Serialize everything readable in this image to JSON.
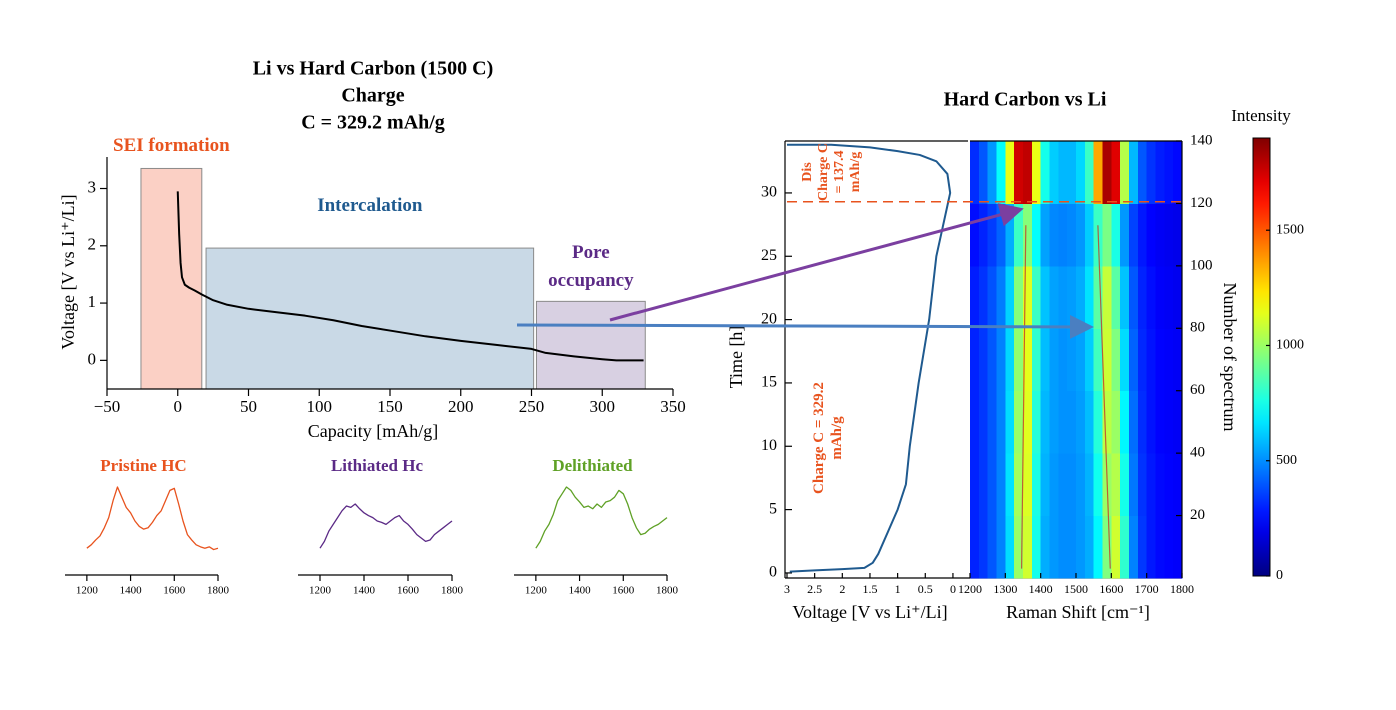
{
  "chart_data": [
    {
      "type": "line",
      "title": [
        "Li vs Hard Carbon (1500 C)",
        "Charge",
        "C = 329.2 mAh/g"
      ],
      "x_label": "Capacity [mAh/g]",
      "y_label": "Voltage [V vs Li⁺/Li]",
      "xlim": [
        -50,
        350
      ],
      "ylim": [
        -0.5,
        3.55
      ],
      "xticks": [
        {
          "value": -50,
          "label": "−50"
        },
        0,
        50,
        100,
        150,
        200,
        250,
        300,
        350
      ],
      "yticks": [
        0,
        1,
        2,
        3
      ],
      "color": "#000000",
      "x": [
        0,
        1,
        2,
        3,
        5,
        8,
        12,
        17,
        25,
        35,
        50,
        70,
        90,
        110,
        130,
        150,
        175,
        200,
        225,
        250,
        260,
        280,
        300,
        310,
        329.2
      ],
      "values": [
        2.95,
        2.2,
        1.7,
        1.45,
        1.32,
        1.27,
        1.22,
        1.15,
        1.05,
        0.97,
        0.9,
        0.84,
        0.78,
        0.7,
        0.6,
        0.52,
        0.42,
        0.34,
        0.27,
        0.2,
        0.13,
        0.07,
        0.02,
        0,
        0
      ],
      "regions": [
        {
          "label": "SEI formation",
          "x": [
            -26,
            17
          ],
          "ymax": 3.35,
          "color": "#fbd0c5",
          "label_color": "#e8531e"
        },
        {
          "label": "Intercalation",
          "x": [
            20,
            251.5
          ],
          "ymax": 1.96,
          "color": "#c9d9e6",
          "label_color": "#1f5a8f"
        },
        {
          "label": "Pore occupancy",
          "x": [
            253.5,
            330.4
          ],
          "ymax": 1.03,
          "color": "#d8d0e2",
          "label_color": "#5b2a86"
        }
      ]
    },
    {
      "type": "line",
      "title": "Pristine HC",
      "color": "#e8531e",
      "xlim": [
        1100,
        1800
      ],
      "ylim": [
        0,
        1
      ],
      "xticks": [
        1200,
        1400,
        1600,
        1800
      ],
      "x": [
        1200,
        1220,
        1240,
        1260,
        1280,
        1300,
        1320,
        1340,
        1360,
        1380,
        1400,
        1420,
        1440,
        1460,
        1480,
        1500,
        1520,
        1540,
        1560,
        1580,
        1600,
        1620,
        1640,
        1660,
        1680,
        1700,
        1720,
        1740,
        1760,
        1780,
        1800
      ],
      "values": [
        0.1,
        0.15,
        0.22,
        0.28,
        0.4,
        0.55,
        0.8,
        1.0,
        0.85,
        0.7,
        0.62,
        0.5,
        0.42,
        0.38,
        0.4,
        0.48,
        0.58,
        0.65,
        0.8,
        0.95,
        0.98,
        0.75,
        0.5,
        0.3,
        0.22,
        0.15,
        0.12,
        0.1,
        0.12,
        0.08,
        0.1
      ]
    },
    {
      "type": "line",
      "title": "Lithiated Hc",
      "color": "#5b2a86",
      "xlim": [
        1100,
        1800
      ],
      "ylim": [
        0,
        1
      ],
      "xticks": [
        1200,
        1400,
        1600,
        1800
      ],
      "x": [
        1200,
        1220,
        1240,
        1260,
        1280,
        1300,
        1320,
        1340,
        1360,
        1380,
        1400,
        1420,
        1440,
        1460,
        1480,
        1500,
        1520,
        1540,
        1560,
        1580,
        1600,
        1620,
        1640,
        1660,
        1680,
        1700,
        1720,
        1740,
        1760,
        1780,
        1800
      ],
      "values": [
        0.1,
        0.2,
        0.35,
        0.45,
        0.55,
        0.65,
        0.72,
        0.7,
        0.75,
        0.68,
        0.62,
        0.58,
        0.55,
        0.5,
        0.48,
        0.45,
        0.5,
        0.55,
        0.58,
        0.5,
        0.45,
        0.38,
        0.3,
        0.25,
        0.2,
        0.22,
        0.3,
        0.35,
        0.4,
        0.45,
        0.5
      ]
    },
    {
      "type": "line",
      "title": "Delithiated",
      "color": "#5fa126",
      "xlim": [
        1100,
        1800
      ],
      "ylim": [
        0,
        1
      ],
      "xticks": [
        1200,
        1400,
        1600,
        1800
      ],
      "x": [
        1200,
        1220,
        1240,
        1260,
        1280,
        1300,
        1320,
        1340,
        1360,
        1380,
        1400,
        1420,
        1440,
        1460,
        1480,
        1500,
        1520,
        1540,
        1560,
        1580,
        1600,
        1620,
        1640,
        1660,
        1680,
        1700,
        1720,
        1740,
        1760,
        1780,
        1800
      ],
      "values": [
        0.1,
        0.2,
        0.35,
        0.45,
        0.6,
        0.8,
        0.9,
        1.0,
        0.95,
        0.85,
        0.78,
        0.7,
        0.72,
        0.68,
        0.75,
        0.7,
        0.78,
        0.8,
        0.85,
        0.95,
        0.9,
        0.75,
        0.55,
        0.4,
        0.3,
        0.32,
        0.38,
        0.42,
        0.45,
        0.5,
        0.55
      ]
    },
    {
      "type": "line",
      "x_label": "Voltage [V vs Li⁺/Li]",
      "y_label": "Time [h]",
      "xlim": [
        3,
        -0.2
      ],
      "ylim": [
        -0.4,
        34.1
      ],
      "xticks": [
        3,
        2.5,
        2,
        1.5,
        1,
        0.5,
        0
      ],
      "yticks": [
        0,
        5,
        10,
        15,
        20,
        25,
        30
      ],
      "color": "#1f5a8f",
      "x": [
        2.95,
        2.5,
        2,
        1.6,
        1.45,
        1.35,
        1.15,
        1.0,
        0.85,
        0.78,
        0.62,
        0.43,
        0.3,
        0.2,
        0.1,
        0.05,
        0.1,
        0.3,
        0.6,
        1.0,
        1.5,
        2.2,
        3.0
      ],
      "values": [
        0.1,
        0.2,
        0.3,
        0.4,
        0.8,
        1.5,
        3.5,
        5,
        7,
        10,
        15,
        20,
        25,
        27,
        29,
        30,
        31.5,
        32.5,
        33,
        33.3,
        33.6,
        33.8,
        33.8
      ],
      "hline": 29.3,
      "hline_color": "#e8531e",
      "annotations": [
        "Dis Charge C = 137.4 mAh/g",
        "Charge C = 329.2 mAh/g"
      ],
      "annotation_color": "#e8531e"
    },
    {
      "type": "heatmap",
      "title": "Hard Carbon vs Li",
      "x_label": "Raman Shift [cm⁻¹]",
      "y2_label": "Number of spectrum",
      "xlim": [
        1200,
        1800
      ],
      "y2lim": [
        0,
        140
      ],
      "xticks": [
        1200,
        1300,
        1400,
        1500,
        1600,
        1700,
        1800
      ],
      "y2ticks": [
        20,
        40,
        60,
        80,
        100,
        120,
        140
      ],
      "x_bins": [
        1200,
        1225,
        1250,
        1275,
        1300,
        1325,
        1350,
        1375,
        1400,
        1425,
        1450,
        1475,
        1500,
        1525,
        1550,
        1575,
        1600,
        1625,
        1650,
        1675,
        1700,
        1725,
        1750,
        1775,
        1800
      ],
      "y_bins": [
        0,
        20,
        40,
        60,
        80,
        100,
        120,
        140
      ],
      "z": [
        [
          300,
          340,
          400,
          480,
          650,
          1000,
          1100,
          750,
          560,
          520,
          500,
          500,
          520,
          560,
          700,
          950,
          1100,
          800,
          480,
          340,
          280,
          250,
          240,
          230
        ],
        [
          300,
          340,
          400,
          480,
          660,
          1020,
          1120,
          760,
          570,
          520,
          500,
          500,
          520,
          570,
          740,
          1000,
          1050,
          750,
          460,
          330,
          280,
          250,
          240,
          230
        ],
        [
          300,
          340,
          400,
          480,
          650,
          1000,
          1130,
          780,
          580,
          530,
          510,
          510,
          530,
          590,
          780,
          1060,
          1000,
          700,
          440,
          320,
          270,
          240,
          230,
          220
        ],
        [
          300,
          340,
          400,
          480,
          640,
          980,
          1140,
          800,
          590,
          530,
          510,
          520,
          540,
          620,
          830,
          1090,
          950,
          650,
          420,
          310,
          270,
          240,
          230,
          220
        ],
        [
          290,
          330,
          390,
          470,
          630,
          960,
          1130,
          820,
          600,
          540,
          520,
          530,
          560,
          660,
          880,
          1080,
          880,
          600,
          400,
          300,
          260,
          230,
          220,
          210
        ],
        [
          260,
          300,
          350,
          420,
          560,
          820,
          960,
          720,
          540,
          490,
          480,
          490,
          520,
          620,
          820,
          940,
          760,
          520,
          360,
          280,
          240,
          220,
          210,
          200
        ],
        [
          320,
          400,
          520,
          720,
          1150,
          1750,
          1780,
          1150,
          750,
          620,
          580,
          580,
          640,
          820,
          1350,
          1820,
          1720,
          1050,
          580,
          400,
          330,
          290,
          270,
          250
        ]
      ],
      "colormap": "jet",
      "zlim": [
        0,
        1900
      ],
      "zticks": [
        0,
        500,
        1000,
        1500
      ],
      "z_label": "Intensity",
      "traces": [
        {
          "x": [
            1346,
            1358
          ],
          "y": [
            3,
            113
          ]
        },
        {
          "x": [
            1597,
            1562
          ],
          "y": [
            3,
            113
          ]
        }
      ],
      "trace_color": "#c0392b"
    }
  ]
}
